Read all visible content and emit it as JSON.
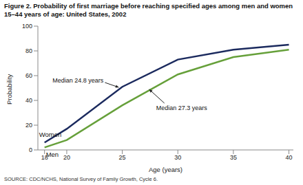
{
  "chart_data": {
    "type": "line",
    "title": "Figure 2. Probability of first marriage before reaching specified ages among men and women 15–44 years of age: United States, 2002",
    "source": "SOURCE: CDC/NCHS, National Survey of Family Growth, Cycle 6.",
    "x_label": "Age (years)",
    "y_label": "Probability",
    "x": [
      18,
      20,
      25,
      30,
      35,
      40
    ],
    "series": [
      {
        "name": "Women",
        "color": "#1b2a5e",
        "values": [
          6,
          17,
          51,
          73,
          81,
          85
        ]
      },
      {
        "name": "Men",
        "color": "#66a03a",
        "values": [
          2,
          8,
          36,
          61,
          75,
          81
        ]
      }
    ],
    "xlim": [
      17.4,
      40.4
    ],
    "xticks": [
      18,
      20,
      25,
      30,
      35,
      40
    ],
    "ylim": [
      0,
      100
    ],
    "yticks": [
      0,
      20,
      40,
      60,
      80,
      100
    ],
    "grid": false,
    "annotations": [
      {
        "text": "Median 24.8 years",
        "x": 24.8,
        "y": 50
      },
      {
        "text": "Median 27.3 years",
        "x": 27.3,
        "y": 50
      }
    ]
  }
}
